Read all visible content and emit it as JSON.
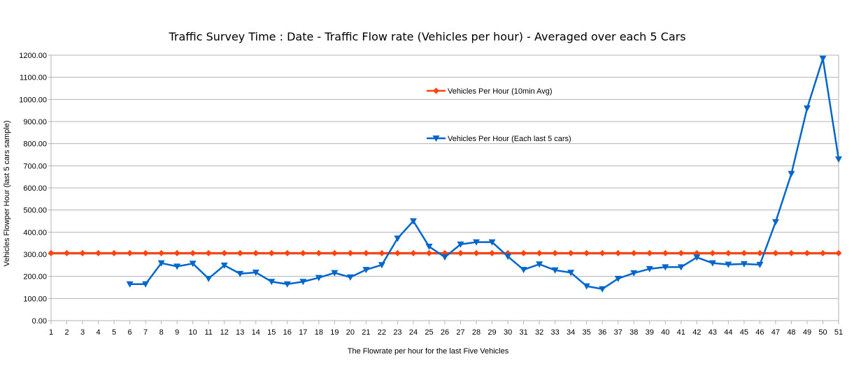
{
  "chart_data": {
    "type": "line",
    "title": "Traffic Survey Time : Date - Traffic Flow rate (Vehicles per hour) - Averaged over each 5 Cars",
    "xlabel": "The Flowrate per hour for the last Five Vehicles",
    "ylabel": "Vehicles Flowper Hour (last 5 cars sample)",
    "x": [
      1,
      2,
      3,
      4,
      5,
      6,
      7,
      8,
      9,
      10,
      11,
      12,
      13,
      14,
      15,
      16,
      17,
      18,
      19,
      20,
      21,
      22,
      23,
      24,
      25,
      26,
      27,
      28,
      29,
      30,
      31,
      32,
      33,
      34,
      35,
      36,
      37,
      38,
      39,
      40,
      41,
      42,
      43,
      44,
      45,
      46,
      47,
      48,
      49,
      50,
      51
    ],
    "ylim": [
      0,
      1200
    ],
    "yticks": [
      "0.00",
      "100.00",
      "200.00",
      "300.00",
      "400.00",
      "500.00",
      "600.00",
      "700.00",
      "800.00",
      "900.00",
      "1000.00",
      "1100.00",
      "1200.00"
    ],
    "grid": true,
    "legend_position": "upper-center",
    "series": [
      {
        "name": "Vehicles Per Hour (10min Avg)",
        "color": "#ff420e",
        "marker": "diamond",
        "values": [
          305,
          305,
          305,
          305,
          305,
          305,
          305,
          305,
          305,
          305,
          305,
          305,
          305,
          305,
          305,
          305,
          305,
          305,
          305,
          305,
          305,
          305,
          305,
          305,
          305,
          305,
          305,
          305,
          305,
          305,
          305,
          305,
          305,
          305,
          305,
          305,
          305,
          305,
          305,
          305,
          305,
          305,
          305,
          305,
          305,
          305,
          305,
          305,
          305,
          305,
          305
        ]
      },
      {
        "name": "Vehicles Per Hour (Each  last 5 cars)",
        "color": "#0066cc",
        "marker": "triangle-down",
        "values": [
          null,
          null,
          null,
          null,
          null,
          165,
          165,
          260,
          245,
          258,
          190,
          250,
          212,
          218,
          176,
          165,
          176,
          194,
          216,
          196,
          230,
          252,
          372,
          450,
          335,
          287,
          345,
          355,
          355,
          290,
          230,
          255,
          228,
          217,
          156,
          143,
          190,
          215,
          234,
          242,
          242,
          286,
          260,
          254,
          256,
          253,
          446,
          664,
          960,
          1185,
          730
        ]
      }
    ]
  }
}
